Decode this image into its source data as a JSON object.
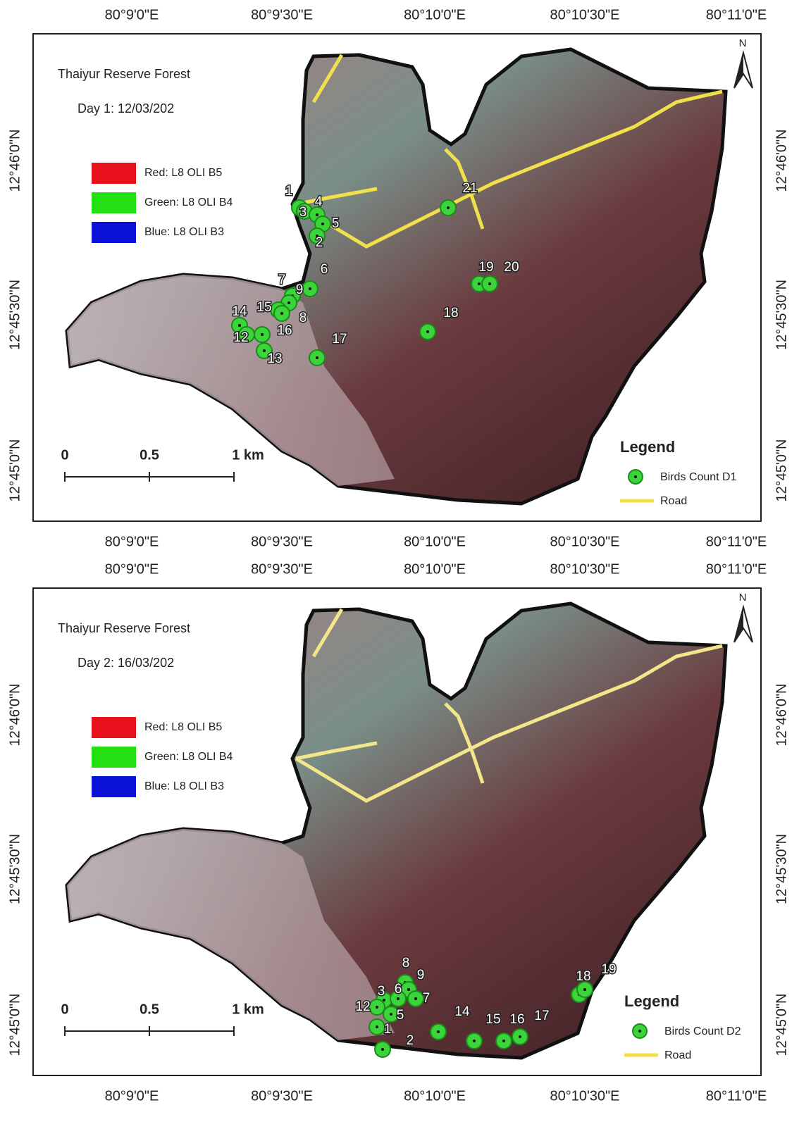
{
  "panels": [
    {
      "title": "Thaiyur Reserve Forest",
      "subtitle": "Day 1: 12/03/202",
      "bands": [
        "Red: L8 OLI B5",
        "Green: L8 OLI B4",
        "Blue: L8 OLI B3"
      ],
      "top_ticks": [
        "80°9'0\"E",
        "80°9'30\"E",
        "80°10'0\"E",
        "80°10'30\"E",
        "80°11'0\"E"
      ],
      "bottom_ticks": [
        "80°9'0\"E",
        "80°9'30\"E",
        "80°10'0\"E",
        "80°10'30\"E",
        "80°11'0\"E"
      ],
      "left_ticks": [
        "12°46'0\"N",
        "12°45'30\"N",
        "12°45'0\"N"
      ],
      "right_ticks": [
        "12°46'0\"N",
        "12°45'30\"N",
        "12°45'0\"N"
      ],
      "scale": [
        "0",
        "0.5",
        "1 km"
      ],
      "legend_title": "Legend",
      "legend_points": "Birds Count D1",
      "legend_road": "Road",
      "north": "N",
      "points": [
        {
          "label": "1"
        },
        {
          "label": "3"
        },
        {
          "label": "4"
        },
        {
          "label": "5"
        },
        {
          "label": "2"
        },
        {
          "label": "6"
        },
        {
          "label": "7"
        },
        {
          "label": "9"
        },
        {
          "label": "15"
        },
        {
          "label": "8"
        },
        {
          "label": "14"
        },
        {
          "label": "16"
        },
        {
          "label": "12"
        },
        {
          "label": "13"
        },
        {
          "label": "17"
        },
        {
          "label": "18"
        },
        {
          "label": "19"
        },
        {
          "label": "20"
        },
        {
          "label": "21"
        }
      ]
    },
    {
      "title": "Thaiyur Reserve Forest",
      "subtitle": "Day 2: 16/03/202",
      "bands": [
        "Red: L8 OLI B5",
        "Green: L8 OLI B4",
        "Blue: L8 OLI B3"
      ],
      "top_ticks": [
        "80°9'0\"E",
        "80°9'30\"E",
        "80°10'0\"E",
        "80°10'30\"E",
        "80°11'0\"E"
      ],
      "bottom_ticks": [
        "80°9'0\"E",
        "80°9'30\"E",
        "80°10'0\"E",
        "80°10'30\"E",
        "80°11'0\"E"
      ],
      "left_ticks": [
        "12°46'0\"N",
        "12°45'30\"N",
        "12°45'0\"N"
      ],
      "right_ticks": [
        "12°46'0\"N",
        "12°45'30\"N",
        "12°45'0\"N"
      ],
      "scale": [
        "0",
        "0.5",
        "1 km"
      ],
      "legend_title": "Legend",
      "legend_points": "Birds Count D2",
      "legend_road": "Road",
      "north": "N",
      "points": [
        {
          "label": "8"
        },
        {
          "label": "9"
        },
        {
          "label": "3"
        },
        {
          "label": "6"
        },
        {
          "label": "7"
        },
        {
          "label": "12"
        },
        {
          "label": "5"
        },
        {
          "label": "1"
        },
        {
          "label": "2"
        },
        {
          "label": "14"
        },
        {
          "label": "15"
        },
        {
          "label": "16"
        },
        {
          "label": "17"
        },
        {
          "label": "18"
        },
        {
          "label": "19"
        }
      ]
    }
  ]
}
